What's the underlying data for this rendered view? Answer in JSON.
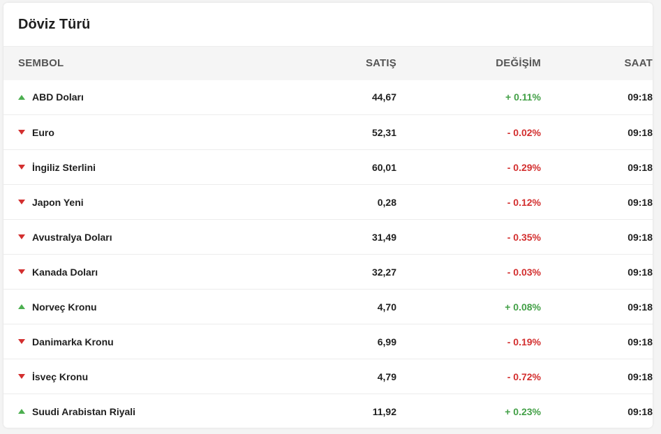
{
  "card": {
    "title": "Döviz Türü"
  },
  "table": {
    "headers": {
      "symbol": "SEMBOL",
      "sell": "SATIŞ",
      "change": "DEĞİŞİM",
      "time": "SAAT"
    },
    "rows": [
      {
        "name": "ABD Doları",
        "sell": "44,67",
        "change": "+ 0.11%",
        "time": "09:18",
        "direction": "up"
      },
      {
        "name": "Euro",
        "sell": "52,31",
        "change": "- 0.02%",
        "time": "09:18",
        "direction": "down"
      },
      {
        "name": "İngiliz Sterlini",
        "sell": "60,01",
        "change": "- 0.29%",
        "time": "09:18",
        "direction": "down"
      },
      {
        "name": "Japon Yeni",
        "sell": "0,28",
        "change": "- 0.12%",
        "time": "09:18",
        "direction": "down"
      },
      {
        "name": "Avustralya Doları",
        "sell": "31,49",
        "change": "- 0.35%",
        "time": "09:18",
        "direction": "down"
      },
      {
        "name": "Kanada Doları",
        "sell": "32,27",
        "change": "- 0.03%",
        "time": "09:18",
        "direction": "down"
      },
      {
        "name": "Norveç Kronu",
        "sell": "4,70",
        "change": "+ 0.08%",
        "time": "09:18",
        "direction": "up"
      },
      {
        "name": "Danimarka Kronu",
        "sell": "6,99",
        "change": "- 0.19%",
        "time": "09:18",
        "direction": "down"
      },
      {
        "name": "İsveç Kronu",
        "sell": "4,79",
        "change": "- 0.72%",
        "time": "09:18",
        "direction": "down"
      },
      {
        "name": "Suudi Arabistan Riyali",
        "sell": "11,92",
        "change": "+ 0.23%",
        "time": "09:18",
        "direction": "up"
      }
    ]
  },
  "colors": {
    "up": "#43a047",
    "down": "#d32f2f",
    "header_bg": "#f5f5f5"
  },
  "icons": {
    "up": "triangle-up-icon",
    "down": "triangle-down-icon"
  }
}
